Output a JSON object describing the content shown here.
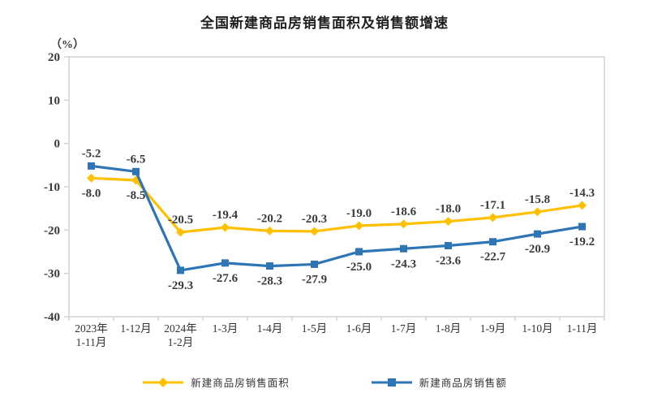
{
  "title": "全国新建商品房销售面积及销售额增速",
  "y_unit": "（%）",
  "chart_data": {
    "type": "line",
    "title": "全国新建商品房销售面积及销售额增速",
    "ylabel": "（%）",
    "ylim": [
      -40,
      20
    ],
    "y_ticks": [
      20,
      10,
      0,
      -10,
      -20,
      -30,
      -40
    ],
    "grid": false,
    "legend_position": "bottom",
    "categories": [
      [
        "2023年",
        "1-11月"
      ],
      [
        "1-12月"
      ],
      [
        "2024年",
        "1-2月"
      ],
      [
        "1-3月"
      ],
      [
        "1-4月"
      ],
      [
        "1-5月"
      ],
      [
        "1-6月"
      ],
      [
        "1-7月"
      ],
      [
        "1-8月"
      ],
      [
        "1-9月"
      ],
      [
        "1-10月"
      ],
      [
        "1-11月"
      ]
    ],
    "series": [
      {
        "name": "新建商品房销售面积",
        "color": "#FFC000",
        "marker": "diamond",
        "values": [
          -8.0,
          -8.5,
          -20.5,
          -19.4,
          -20.2,
          -20.3,
          -19.0,
          -18.6,
          -18.0,
          -17.1,
          -15.8,
          -14.3
        ],
        "labels": [
          "-8.0",
          "-8.5",
          "-20.5",
          "-19.4",
          "-20.2",
          "-20.3",
          "-19.0",
          "-18.6",
          "-18.0",
          "-17.1",
          "-15.8",
          "-14.3"
        ],
        "label_sides": [
          "below",
          "below",
          "above",
          "above",
          "above",
          "above",
          "above",
          "above",
          "above",
          "above",
          "above",
          "above"
        ]
      },
      {
        "name": "新建商品房销售额",
        "color": "#2E75B6",
        "marker": "square",
        "values": [
          -5.2,
          -6.5,
          -29.3,
          -27.6,
          -28.3,
          -27.9,
          -25.0,
          -24.3,
          -23.6,
          -22.7,
          -20.9,
          -19.2
        ],
        "labels": [
          "-5.2",
          "-6.5",
          "-29.3",
          "-27.6",
          "-28.3",
          "-27.9",
          "-25.0",
          "-24.3",
          "-23.6",
          "-22.7",
          "-20.9",
          "-19.2"
        ],
        "label_sides": [
          "above",
          "above",
          "below",
          "below",
          "below",
          "below",
          "below",
          "below",
          "below",
          "below",
          "below",
          "below"
        ]
      }
    ]
  },
  "colors": {
    "axis": "#D3D3D3",
    "label_text": "#3A3A3A",
    "title_text": "#1F1F1F"
  }
}
